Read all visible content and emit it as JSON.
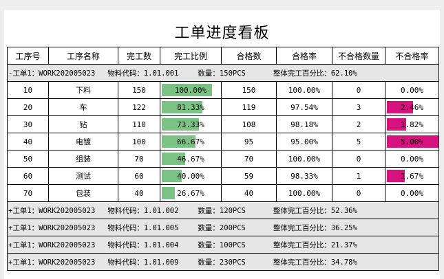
{
  "title": "工单进度看板",
  "colors": {
    "progress_bar": "#7ac383",
    "defect_bar": "#d6137c",
    "group_bg": "#e6e6e6"
  },
  "headers": [
    "工序号",
    "工序名称",
    "完工数",
    "完工比例",
    "合格数",
    "合格率",
    "不合格数量",
    "不合格率"
  ],
  "expanded_group": {
    "toggle": "-",
    "order": "工单1：WORK202005023",
    "material": "物料代码：1.01.001",
    "qty": "数量：150PCS",
    "overall": "整体完工百分比：62.10%"
  },
  "rows": [
    {
      "no": "10",
      "name": "下料",
      "done": "150",
      "ratio": "100.00%",
      "ratio_fraction": 1.0,
      "pass": "150",
      "pass_rate": "100.00%",
      "fail": "0",
      "fail_rate": "0.00%",
      "fail_fraction": 0.0
    },
    {
      "no": "20",
      "name": "车",
      "done": "122",
      "ratio": "81.33%",
      "ratio_fraction": 0.8133,
      "pass": "119",
      "pass_rate": "97.54%",
      "fail": "3",
      "fail_rate": "2.46%",
      "fail_fraction": 0.0246
    },
    {
      "no": "30",
      "name": "钻",
      "done": "110",
      "ratio": "73.33%",
      "ratio_fraction": 0.7333,
      "pass": "108",
      "pass_rate": "98.18%",
      "fail": "2",
      "fail_rate": "1.82%",
      "fail_fraction": 0.0182
    },
    {
      "no": "40",
      "name": "电镀",
      "done": "100",
      "ratio": "66.67%",
      "ratio_fraction": 0.6667,
      "pass": "95",
      "pass_rate": "95.00%",
      "fail": "5",
      "fail_rate": "5.00%",
      "fail_fraction": 0.05
    },
    {
      "no": "50",
      "name": "组装",
      "done": "70",
      "ratio": "46.67%",
      "ratio_fraction": 0.4667,
      "pass": "70",
      "pass_rate": "100.00%",
      "fail": "0",
      "fail_rate": "0.00%",
      "fail_fraction": 0.0
    },
    {
      "no": "60",
      "name": "测试",
      "done": "60",
      "ratio": "40.00%",
      "ratio_fraction": 0.4,
      "pass": "59",
      "pass_rate": "98.33%",
      "fail": "1",
      "fail_rate": "1.67%",
      "fail_fraction": 0.0167
    },
    {
      "no": "70",
      "name": "包装",
      "done": "40",
      "ratio": "26.67%",
      "ratio_fraction": 0.2667,
      "pass": "40",
      "pass_rate": "100.00%",
      "fail": "0",
      "fail_rate": "0.00%",
      "fail_fraction": 0.0
    }
  ],
  "collapsed_groups": [
    {
      "toggle": "+",
      "order": "工单1：WORK202005023",
      "material": "物料代码：1.01.002",
      "qty": "数量：120PCS",
      "overall": "整体完工百分比：52.36%"
    },
    {
      "toggle": "+",
      "order": "工单1：WORK202005023",
      "material": "物料代码：1.01.005",
      "qty": "数量：200PCS",
      "overall": "整体完工百分比：36.25%"
    },
    {
      "toggle": "+",
      "order": "工单1：WORK202005023",
      "material": "物料代码：1.01.004",
      "qty": "数量：100PCS",
      "overall": "整体完工百分比：21.37%"
    },
    {
      "toggle": "+",
      "order": "工单1：WORK202005023",
      "material": "物料代码：1.01.009",
      "qty": "数量：230PCS",
      "overall": "整体完工百分比：34.78%"
    }
  ]
}
